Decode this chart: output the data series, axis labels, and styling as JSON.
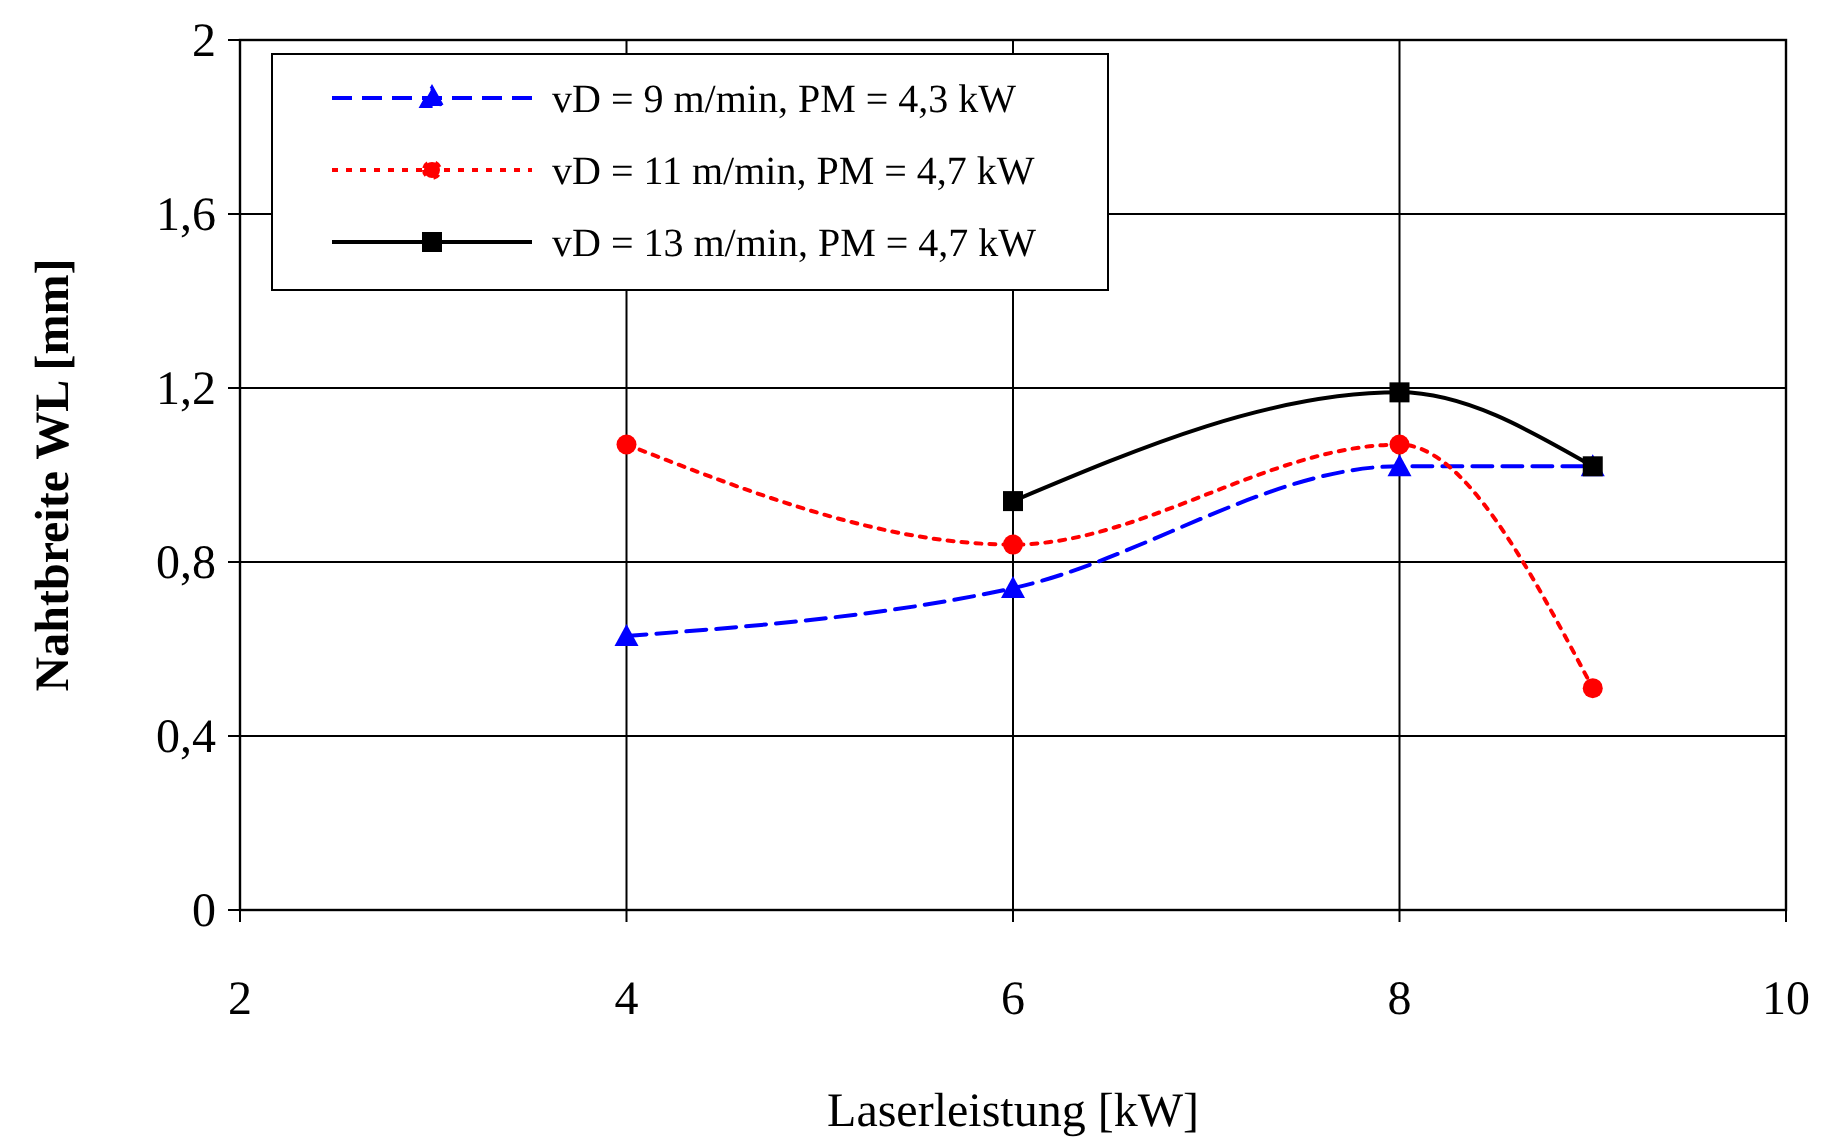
{
  "chart_data": {
    "type": "line",
    "xlabel": "Laserleistung [kW]",
    "ylabel": "Nahtbreite WL [mm]",
    "xlim": [
      2,
      10
    ],
    "xticks": [
      2,
      4,
      6,
      8,
      10
    ],
    "ylim": [
      0,
      2
    ],
    "yticks": [
      0,
      {
        "value": 0.4,
        "label": "0,4"
      },
      {
        "value": 0.8,
        "label": "0,8"
      },
      {
        "value": 1.2,
        "label": "1,2"
      },
      {
        "value": 1.6,
        "label": "1,6"
      },
      2
    ],
    "grid": true,
    "legend": "top left",
    "series": [
      {
        "name": "vD = 9 m/min, PM = 4,3 kW",
        "color": "#0000ff",
        "marker": "triangle",
        "line_style": "dashed",
        "x": [
          4,
          6,
          8,
          9
        ],
        "values": [
          0.63,
          0.74,
          1.02,
          1.02
        ]
      },
      {
        "name": "vD = 11 m/min, PM = 4,7 kW",
        "color": "#ff0000",
        "marker": "circle",
        "line_style": "dotted",
        "x": [
          4,
          6,
          8,
          9
        ],
        "values": [
          1.07,
          0.84,
          1.07,
          0.51
        ]
      },
      {
        "name": "vD = 13 m/min, PM = 4,7 kW",
        "color": "#000000",
        "marker": "square",
        "line_style": "solid",
        "x": [
          6,
          8,
          9
        ],
        "values": [
          0.94,
          1.19,
          1.02
        ]
      }
    ]
  }
}
